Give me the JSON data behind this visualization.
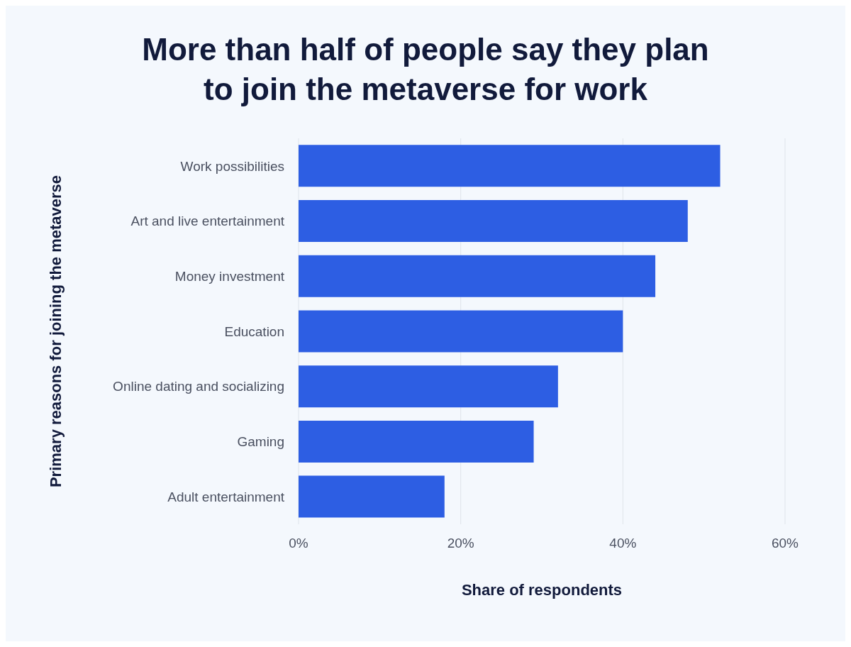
{
  "chart_data": {
    "type": "bar",
    "orientation": "horizontal",
    "title": "More than half of people say they plan to join the metaverse for work",
    "xlabel": "Share of respondents",
    "ylabel": "Primary reasons for joining the metaverse",
    "categories": [
      "Work possibilities",
      "Art and live entertainment",
      "Money investment",
      "Education",
      "Online dating and socializing",
      "Gaming",
      "Adult entertainment"
    ],
    "values": [
      52,
      48,
      44,
      40,
      32,
      29,
      18
    ],
    "color": "#2d5ee3",
    "xlim": [
      0,
      60
    ],
    "xticks": [
      {
        "value": 0,
        "label": "0%"
      },
      {
        "value": 20,
        "label": "20%"
      },
      {
        "value": 40,
        "label": "40%"
      },
      {
        "value": 60,
        "label": "60%"
      }
    ],
    "grid": "x"
  }
}
